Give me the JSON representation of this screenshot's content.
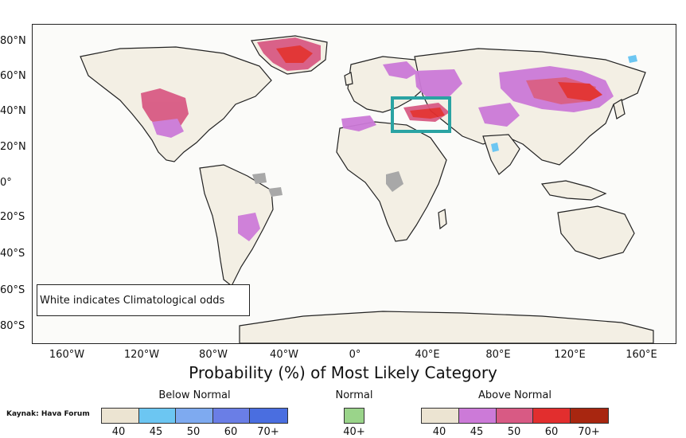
{
  "map": {
    "title": "Probability (%) of Most Likely Category",
    "note": "White indicates Climatological odds",
    "source": "Kaynak: Hava Forum",
    "lat_labels": [
      "80°N",
      "60°N",
      "40°N",
      "20°N",
      "0°",
      "20°S",
      "40°S",
      "60°S",
      "80°S"
    ],
    "lon_labels": [
      "160°W",
      "120°W",
      "80°W",
      "40°W",
      "0°",
      "40°E",
      "80°E",
      "120°E",
      "160°E"
    ],
    "highlight_box_color": "#2aa3a3",
    "highlight_region": "Turkey"
  },
  "legend": {
    "below": {
      "title": "Below Normal",
      "labels": [
        "40",
        "45",
        "50",
        "60",
        "70+"
      ],
      "colors": [
        "#ece4d2",
        "#6cc6f2",
        "#7eaaf0",
        "#6a7ee6",
        "#4a6ee0"
      ]
    },
    "normal": {
      "title": "Normal",
      "labels": [
        "40+"
      ],
      "colors": [
        "#9ad48a"
      ]
    },
    "above": {
      "title": "Above Normal",
      "labels": [
        "40",
        "45",
        "50",
        "60",
        "70+"
      ],
      "colors": [
        "#ece4d2",
        "#cc7ad8",
        "#d85a84",
        "#e22e2e",
        "#a82610"
      ]
    }
  }
}
